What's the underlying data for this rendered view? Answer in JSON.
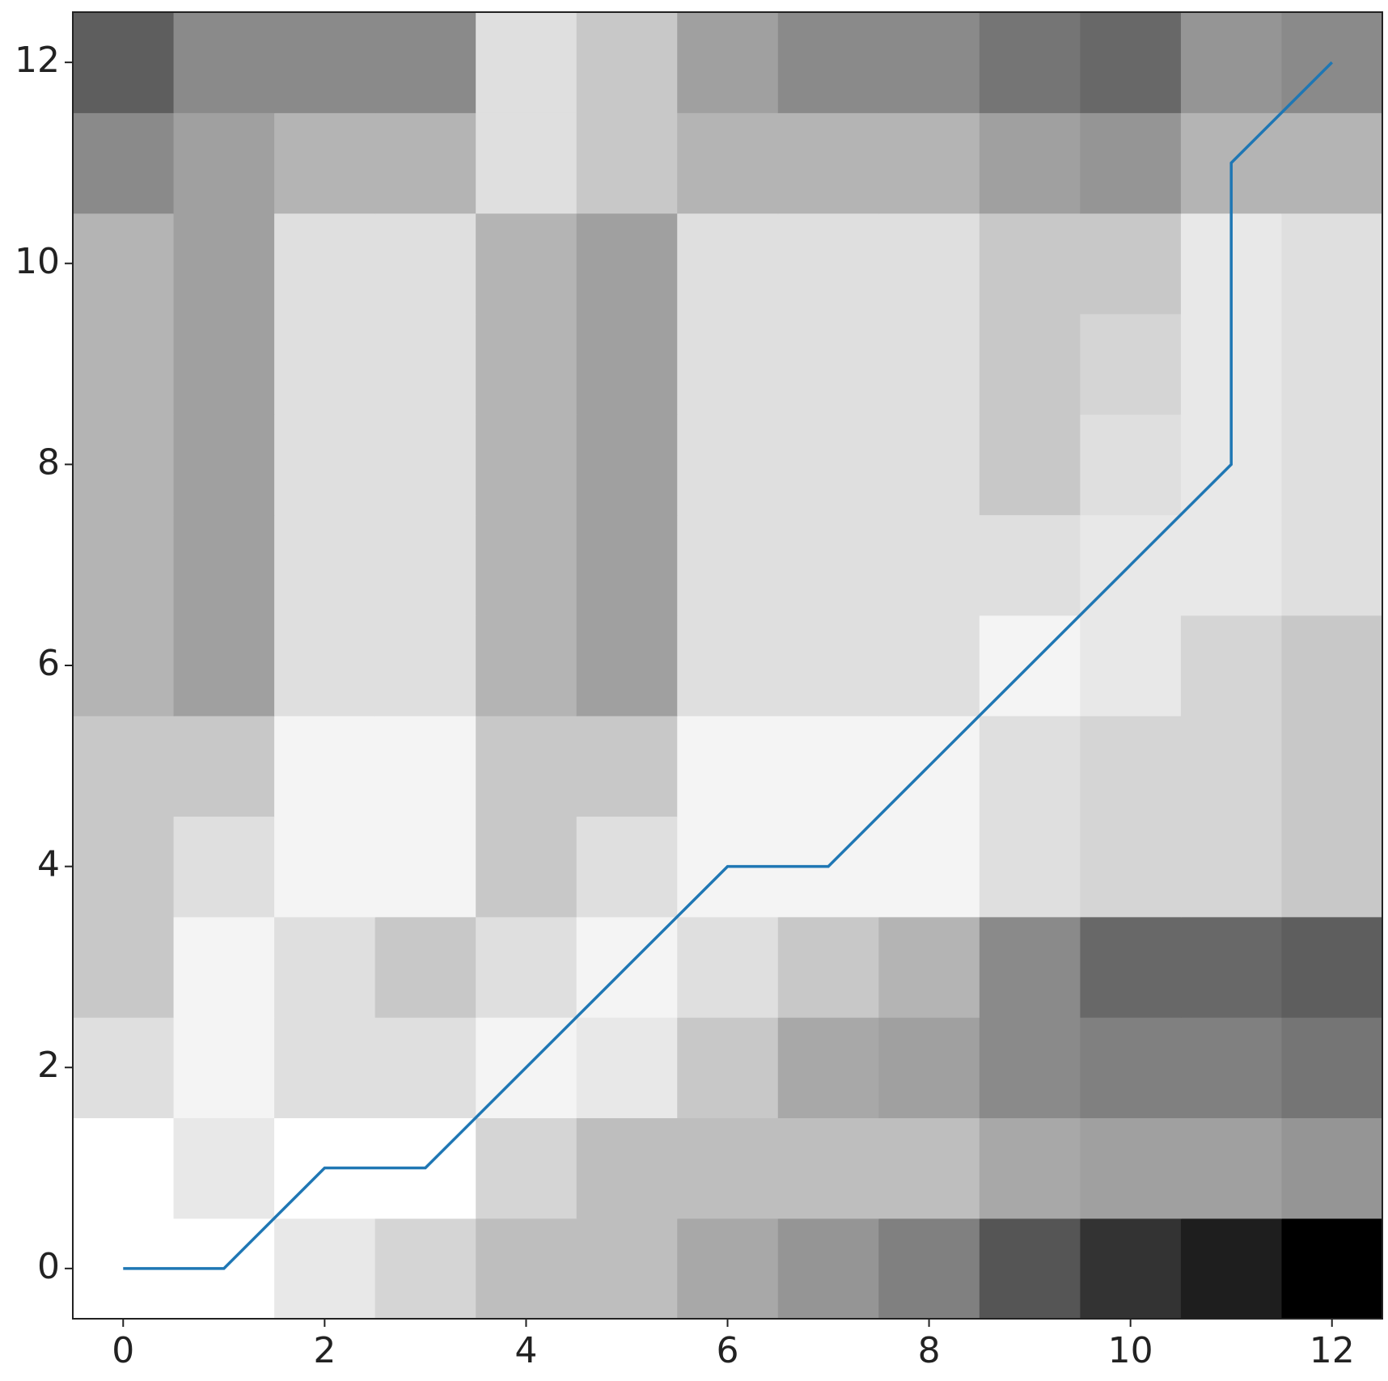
{
  "chart_data": {
    "type": "heatmap",
    "colormap": "gray",
    "zlim": [
      0,
      255
    ],
    "values": [
      [
        255,
        255,
        232,
        213,
        190,
        190,
        168,
        149,
        128,
        85,
        51,
        30,
        0
      ],
      [
        255,
        232,
        255,
        255,
        213,
        190,
        190,
        190,
        190,
        168,
        160,
        160,
        149
      ],
      [
        223,
        244,
        223,
        223,
        244,
        232,
        200,
        168,
        160,
        138,
        128,
        128,
        117
      ],
      [
        200,
        244,
        223,
        200,
        223,
        244,
        223,
        200,
        180,
        138,
        104,
        104,
        94
      ],
      [
        200,
        223,
        244,
        244,
        200,
        223,
        244,
        244,
        244,
        223,
        213,
        213,
        200
      ],
      [
        200,
        200,
        244,
        244,
        200,
        200,
        244,
        244,
        244,
        223,
        213,
        213,
        200
      ],
      [
        180,
        160,
        223,
        223,
        180,
        160,
        223,
        223,
        223,
        244,
        232,
        213,
        200
      ],
      [
        180,
        160,
        223,
        223,
        180,
        160,
        223,
        223,
        223,
        223,
        232,
        232,
        223
      ],
      [
        180,
        160,
        223,
        223,
        180,
        160,
        223,
        223,
        223,
        200,
        223,
        232,
        223
      ],
      [
        180,
        160,
        223,
        223,
        180,
        160,
        223,
        223,
        223,
        200,
        213,
        232,
        223
      ],
      [
        180,
        160,
        223,
        223,
        180,
        160,
        223,
        223,
        223,
        200,
        200,
        232,
        223
      ],
      [
        138,
        160,
        180,
        180,
        223,
        200,
        180,
        180,
        180,
        160,
        149,
        180,
        180
      ],
      [
        94,
        138,
        138,
        138,
        223,
        200,
        160,
        138,
        138,
        117,
        104,
        149,
        138
      ]
    ],
    "path": {
      "type": "line",
      "color": "#1f77b4",
      "x": [
        0,
        1,
        2,
        3,
        4,
        5,
        6,
        7,
        8,
        9,
        10,
        11,
        11,
        12
      ],
      "y": [
        0,
        0,
        1,
        1,
        2,
        3,
        4,
        4,
        5,
        6,
        7,
        8,
        11,
        12
      ]
    },
    "xlim": [
      -0.5,
      12.5
    ],
    "ylim": [
      -0.5,
      12.5
    ],
    "xticks": [
      0,
      2,
      4,
      6,
      8,
      10,
      12
    ],
    "yticks": [
      0,
      2,
      4,
      6,
      8,
      10,
      12
    ]
  }
}
